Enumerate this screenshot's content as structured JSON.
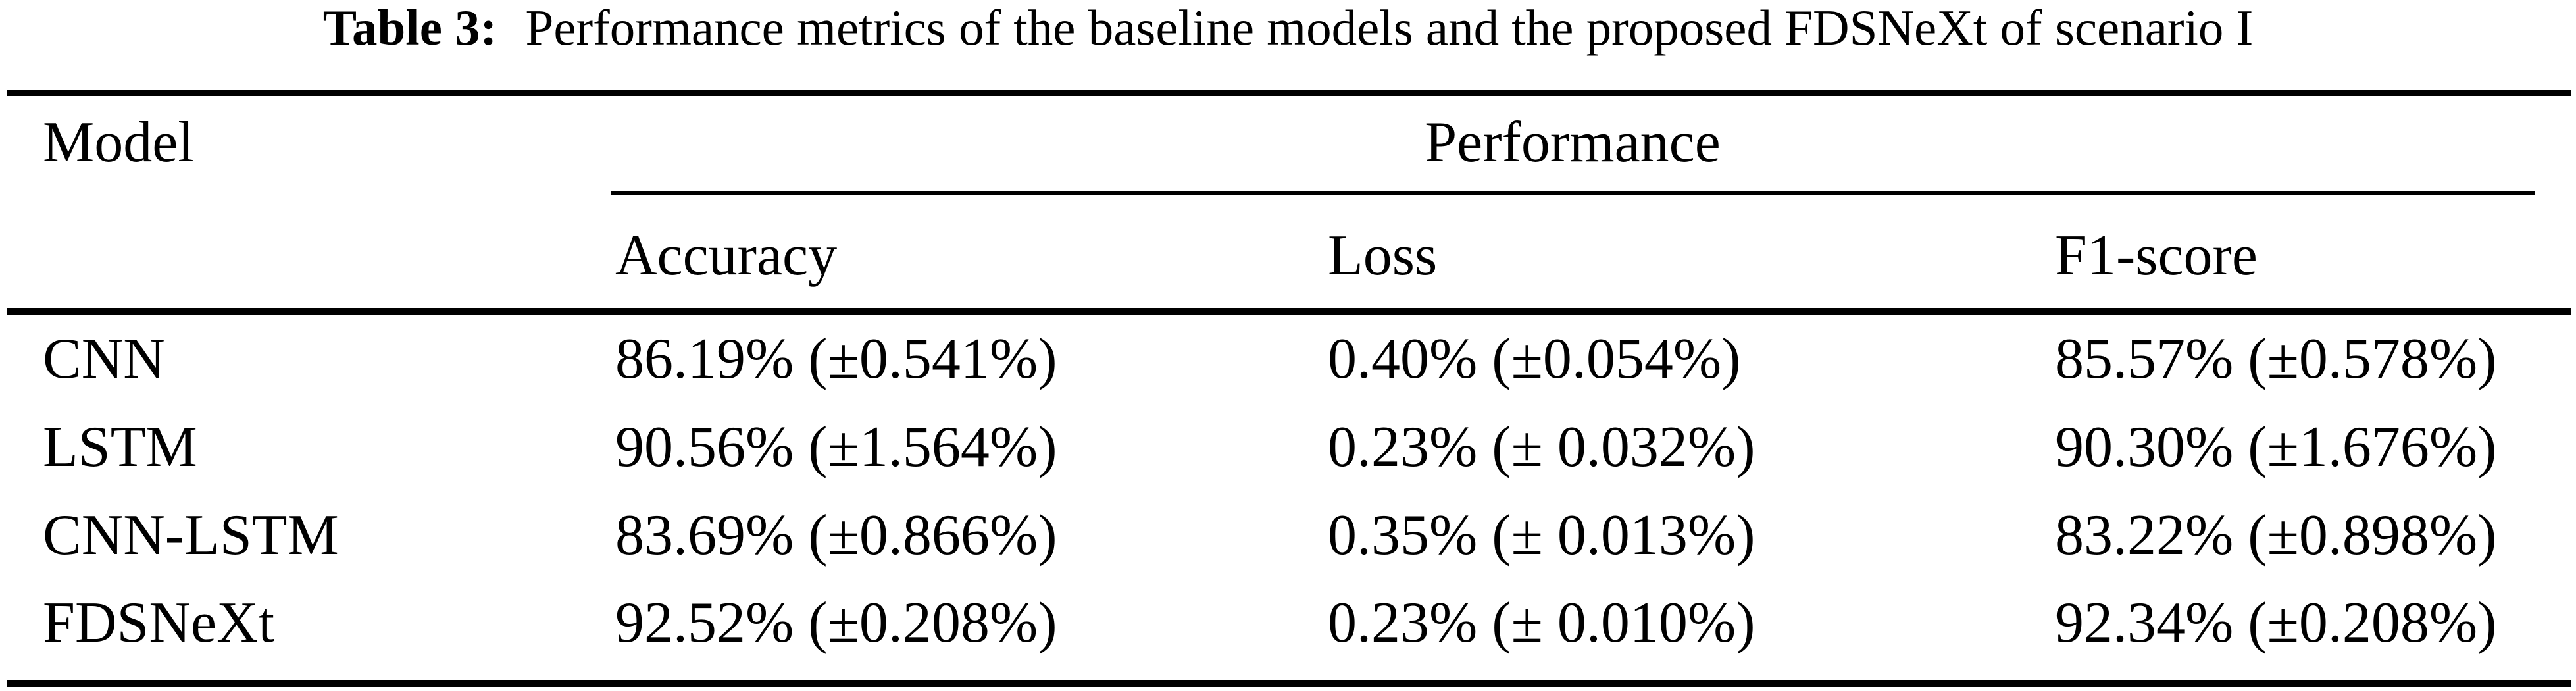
{
  "colors": {
    "text": "#000000",
    "background": "#ffffff"
  },
  "caption": {
    "label": "Table 3:",
    "text": "Performance metrics of the baseline models and the proposed FDSNeXt of scenario I"
  },
  "table": {
    "model_header": "Model",
    "spanner_header": "Performance",
    "columns": [
      "Accuracy",
      "Loss",
      "F1-score"
    ],
    "rows": [
      {
        "model": "CNN",
        "accuracy": "86.19% (±0.541%)",
        "loss": "0.40% (±0.054%)",
        "f1": "85.57% (±0.578%)"
      },
      {
        "model": "LSTM",
        "accuracy": "90.56% (±1.564%)",
        "loss": "0.23% (± 0.032%)",
        "f1": "90.30% (±1.676%)"
      },
      {
        "model": "CNN-LSTM",
        "accuracy": "83.69% (±0.866%)",
        "loss": "0.35% (± 0.013%)",
        "f1": "83.22% (±0.898%)"
      },
      {
        "model": "FDSNeXt",
        "accuracy": "92.52% (±0.208%)",
        "loss": "0.23% (± 0.010%)",
        "f1": "92.34% (±0.208%)"
      }
    ]
  }
}
